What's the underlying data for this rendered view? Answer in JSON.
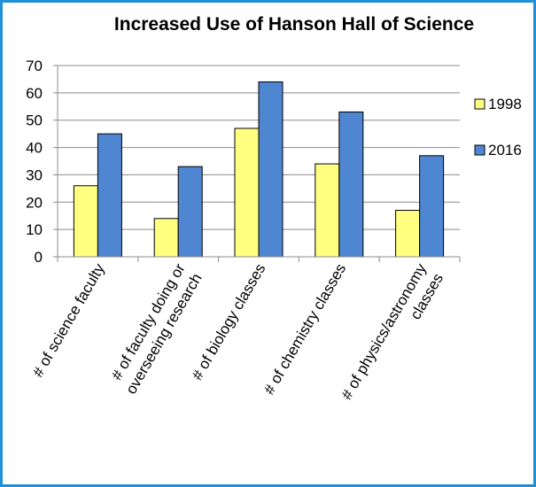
{
  "chart_data": {
    "type": "bar",
    "title": "Increased Use of Hanson Hall of Science",
    "categories": [
      [
        "# of science faculty"
      ],
      [
        "# of faculty doing or",
        "overseeing research"
      ],
      [
        "# of biology classes"
      ],
      [
        "# of chemistry classes"
      ],
      [
        "# of physics/astronomy",
        "classes"
      ]
    ],
    "series": [
      {
        "name": "1998",
        "color": "#ffff80",
        "values": [
          26,
          14,
          47,
          34,
          17
        ]
      },
      {
        "name": "2016",
        "color": "#4f86d2",
        "values": [
          45,
          33,
          64,
          53,
          37
        ]
      }
    ],
    "ylim": [
      0,
      70
    ],
    "yticks": [
      0,
      10,
      20,
      30,
      40,
      50,
      60,
      70
    ],
    "grid": true,
    "legend_position": "right",
    "xlabel": "",
    "ylabel": ""
  }
}
